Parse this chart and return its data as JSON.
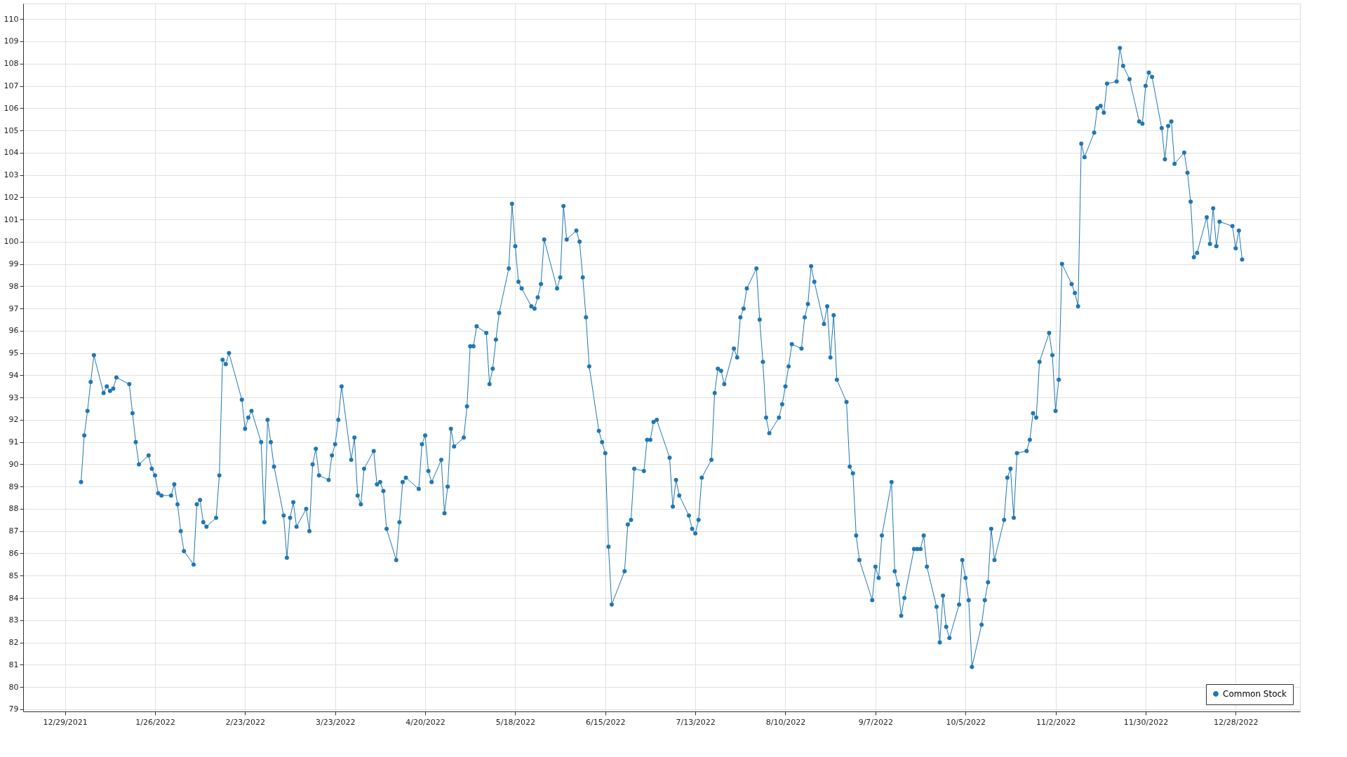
{
  "chart_data": {
    "type": "line",
    "x": [
      "2022-01-03",
      "2022-01-04",
      "2022-01-05",
      "2022-01-06",
      "2022-01-07",
      "2022-01-10",
      "2022-01-11",
      "2022-01-12",
      "2022-01-13",
      "2022-01-14",
      "2022-01-18",
      "2022-01-19",
      "2022-01-20",
      "2022-01-21",
      "2022-01-24",
      "2022-01-25",
      "2022-01-26",
      "2022-01-27",
      "2022-01-28",
      "2022-01-31",
      "2022-02-01",
      "2022-02-02",
      "2022-02-03",
      "2022-02-04",
      "2022-02-07",
      "2022-02-08",
      "2022-02-09",
      "2022-02-10",
      "2022-02-11",
      "2022-02-14",
      "2022-02-15",
      "2022-02-16",
      "2022-02-17",
      "2022-02-18",
      "2022-02-22",
      "2022-02-23",
      "2022-02-24",
      "2022-02-25",
      "2022-02-28",
      "2022-03-01",
      "2022-03-02",
      "2022-03-03",
      "2022-03-04",
      "2022-03-07",
      "2022-03-08",
      "2022-03-09",
      "2022-03-10",
      "2022-03-11",
      "2022-03-14",
      "2022-03-15",
      "2022-03-16",
      "2022-03-17",
      "2022-03-18",
      "2022-03-21",
      "2022-03-22",
      "2022-03-23",
      "2022-03-24",
      "2022-03-25",
      "2022-03-28",
      "2022-03-29",
      "2022-03-30",
      "2022-03-31",
      "2022-04-01",
      "2022-04-04",
      "2022-04-05",
      "2022-04-06",
      "2022-04-07",
      "2022-04-08",
      "2022-04-11",
      "2022-04-12",
      "2022-04-13",
      "2022-04-14",
      "2022-04-18",
      "2022-04-19",
      "2022-04-20",
      "2022-04-21",
      "2022-04-22",
      "2022-04-25",
      "2022-04-26",
      "2022-04-27",
      "2022-04-28",
      "2022-04-29",
      "2022-05-02",
      "2022-05-03",
      "2022-05-04",
      "2022-05-05",
      "2022-05-06",
      "2022-05-09",
      "2022-05-10",
      "2022-05-11",
      "2022-05-12",
      "2022-05-13",
      "2022-05-16",
      "2022-05-17",
      "2022-05-18",
      "2022-05-19",
      "2022-05-20",
      "2022-05-23",
      "2022-05-24",
      "2022-05-25",
      "2022-05-26",
      "2022-05-27",
      "2022-05-31",
      "2022-06-01",
      "2022-06-02",
      "2022-06-03",
      "2022-06-06",
      "2022-06-07",
      "2022-06-08",
      "2022-06-09",
      "2022-06-10",
      "2022-06-13",
      "2022-06-14",
      "2022-06-15",
      "2022-06-16",
      "2022-06-17",
      "2022-06-21",
      "2022-06-22",
      "2022-06-23",
      "2022-06-24",
      "2022-06-27",
      "2022-06-28",
      "2022-06-29",
      "2022-06-30",
      "2022-07-01",
      "2022-07-05",
      "2022-07-06",
      "2022-07-07",
      "2022-07-08",
      "2022-07-11",
      "2022-07-12",
      "2022-07-13",
      "2022-07-14",
      "2022-07-15",
      "2022-07-18",
      "2022-07-19",
      "2022-07-20",
      "2022-07-21",
      "2022-07-22",
      "2022-07-25",
      "2022-07-26",
      "2022-07-27",
      "2022-07-28",
      "2022-07-29",
      "2022-08-01",
      "2022-08-02",
      "2022-08-03",
      "2022-08-04",
      "2022-08-05",
      "2022-08-08",
      "2022-08-09",
      "2022-08-10",
      "2022-08-11",
      "2022-08-12",
      "2022-08-15",
      "2022-08-16",
      "2022-08-17",
      "2022-08-18",
      "2022-08-19",
      "2022-08-22",
      "2022-08-23",
      "2022-08-24",
      "2022-08-25",
      "2022-08-26",
      "2022-08-29",
      "2022-08-30",
      "2022-08-31",
      "2022-09-01",
      "2022-09-02",
      "2022-09-06",
      "2022-09-07",
      "2022-09-08",
      "2022-09-09",
      "2022-09-12",
      "2022-09-13",
      "2022-09-14",
      "2022-09-15",
      "2022-09-16",
      "2022-09-19",
      "2022-09-20",
      "2022-09-21",
      "2022-09-22",
      "2022-09-23",
      "2022-09-26",
      "2022-09-27",
      "2022-09-28",
      "2022-09-29",
      "2022-09-30",
      "2022-10-03",
      "2022-10-04",
      "2022-10-05",
      "2022-10-06",
      "2022-10-07",
      "2022-10-10",
      "2022-10-11",
      "2022-10-12",
      "2022-10-13",
      "2022-10-14",
      "2022-10-17",
      "2022-10-18",
      "2022-10-19",
      "2022-10-20",
      "2022-10-21",
      "2022-10-24",
      "2022-10-25",
      "2022-10-26",
      "2022-10-27",
      "2022-10-28",
      "2022-10-31",
      "2022-11-01",
      "2022-11-02",
      "2022-11-03",
      "2022-11-04",
      "2022-11-07",
      "2022-11-08",
      "2022-11-09",
      "2022-11-10",
      "2022-11-11",
      "2022-11-14",
      "2022-11-15",
      "2022-11-16",
      "2022-11-17",
      "2022-11-18",
      "2022-11-21",
      "2022-11-22",
      "2022-11-23",
      "2022-11-25",
      "2022-11-28",
      "2022-11-29",
      "2022-11-30",
      "2022-12-01",
      "2022-12-02",
      "2022-12-05",
      "2022-12-06",
      "2022-12-07",
      "2022-12-08",
      "2022-12-09",
      "2022-12-12",
      "2022-12-13",
      "2022-12-14",
      "2022-12-15",
      "2022-12-16",
      "2022-12-19",
      "2022-12-20",
      "2022-12-21",
      "2022-12-22",
      "2022-12-23",
      "2022-12-27",
      "2022-12-28",
      "2022-12-29",
      "2022-12-30"
    ],
    "series": [
      {
        "name": "Common Stock",
        "color": "#1f77b4",
        "values": [
          89.2,
          91.3,
          92.4,
          93.7,
          94.9,
          93.2,
          93.5,
          93.3,
          93.4,
          93.9,
          93.6,
          92.3,
          91.0,
          90.0,
          90.4,
          89.8,
          89.5,
          88.7,
          88.6,
          88.6,
          89.1,
          88.2,
          87.0,
          86.1,
          85.5,
          88.2,
          88.4,
          87.4,
          87.2,
          87.6,
          89.5,
          94.7,
          94.5,
          95.0,
          92.9,
          91.6,
          92.1,
          92.4,
          91.0,
          87.4,
          92.0,
          91.0,
          89.9,
          87.7,
          85.8,
          87.6,
          88.3,
          87.2,
          88.0,
          87.0,
          90.0,
          90.7,
          89.5,
          89.3,
          90.4,
          90.9,
          92.0,
          93.5,
          90.2,
          91.2,
          88.6,
          88.2,
          89.8,
          90.6,
          89.1,
          89.2,
          88.8,
          87.1,
          85.7,
          87.4,
          89.2,
          89.4,
          88.9,
          90.9,
          91.3,
          89.7,
          89.2,
          90.2,
          87.8,
          89.0,
          91.6,
          90.8,
          91.2,
          92.6,
          95.3,
          95.3,
          96.2,
          95.9,
          93.6,
          94.3,
          95.6,
          96.8,
          98.8,
          101.7,
          99.8,
          98.2,
          97.9,
          97.1,
          97.0,
          97.5,
          98.1,
          100.1,
          97.9,
          98.4,
          101.6,
          100.1,
          100.5,
          100.0,
          98.4,
          96.6,
          94.4,
          91.5,
          91.0,
          90.5,
          86.3,
          83.7,
          85.2,
          87.3,
          87.5,
          89.8,
          89.7,
          91.1,
          91.1,
          91.9,
          92.0,
          90.3,
          88.1,
          89.3,
          88.6,
          87.7,
          87.1,
          86.9,
          87.5,
          89.4,
          90.2,
          93.2,
          94.3,
          94.2,
          93.6,
          95.2,
          94.8,
          96.6,
          97.0,
          97.9,
          98.8,
          96.5,
          94.6,
          92.1,
          91.4,
          92.1,
          92.7,
          93.5,
          94.4,
          95.4,
          95.2,
          96.6,
          97.2,
          98.9,
          98.2,
          96.3,
          97.1,
          94.8,
          96.7,
          93.8,
          92.8,
          89.9,
          89.6,
          86.8,
          85.7,
          83.9,
          85.4,
          84.9,
          86.8,
          89.2,
          85.2,
          84.6,
          83.2,
          84.0,
          86.2,
          86.2,
          86.2,
          86.8,
          85.4,
          83.6,
          82.0,
          84.1,
          82.7,
          82.2,
          83.7,
          85.7,
          84.9,
          83.9,
          80.9,
          82.8,
          83.9,
          84.7,
          87.1,
          85.7,
          87.5,
          89.4,
          89.8,
          87.6,
          90.5,
          90.6,
          91.1,
          92.3,
          92.1,
          94.6,
          95.9,
          94.9,
          92.4,
          93.8,
          99.0,
          98.1,
          97.7,
          97.1,
          104.4,
          103.8,
          104.9,
          106.0,
          106.1,
          105.8,
          107.1,
          107.2,
          108.7,
          107.9,
          107.3,
          105.4,
          105.3,
          107.0,
          107.6,
          107.4,
          105.1,
          103.7,
          105.2,
          105.4,
          103.5,
          104.0,
          103.1,
          101.8,
          99.3,
          99.5,
          101.1,
          99.9,
          101.5,
          99.8,
          100.9,
          100.7,
          99.7,
          100.5,
          99.2
        ]
      }
    ],
    "xlim": [
      "2021-12-16",
      "2023-01-17"
    ],
    "xticks": [
      {
        "value": "2021-12-29",
        "label": "12/29/2021"
      },
      {
        "value": "2022-01-26",
        "label": "1/26/2022"
      },
      {
        "value": "2022-02-23",
        "label": "2/23/2022"
      },
      {
        "value": "2022-03-23",
        "label": "3/23/2022"
      },
      {
        "value": "2022-04-20",
        "label": "4/20/2022"
      },
      {
        "value": "2022-05-18",
        "label": "5/18/2022"
      },
      {
        "value": "2022-06-15",
        "label": "6/15/2022"
      },
      {
        "value": "2022-07-13",
        "label": "7/13/2022"
      },
      {
        "value": "2022-08-10",
        "label": "8/10/2022"
      },
      {
        "value": "2022-09-07",
        "label": "9/7/2022"
      },
      {
        "value": "2022-10-05",
        "label": "10/5/2022"
      },
      {
        "value": "2022-11-02",
        "label": "11/2/2022"
      },
      {
        "value": "2022-11-30",
        "label": "11/30/2022"
      },
      {
        "value": "2022-12-28",
        "label": "12/28/2022"
      }
    ],
    "ylim": [
      78.9,
      110.7
    ],
    "yticks": [
      79,
      80,
      81,
      82,
      83,
      84,
      85,
      86,
      87,
      88,
      89,
      90,
      91,
      92,
      93,
      94,
      95,
      96,
      97,
      98,
      99,
      100,
      101,
      102,
      103,
      104,
      105,
      106,
      107,
      108,
      109,
      110
    ],
    "grid": true,
    "legend": "bottom right",
    "marker": "circle",
    "line_style": "solid"
  }
}
